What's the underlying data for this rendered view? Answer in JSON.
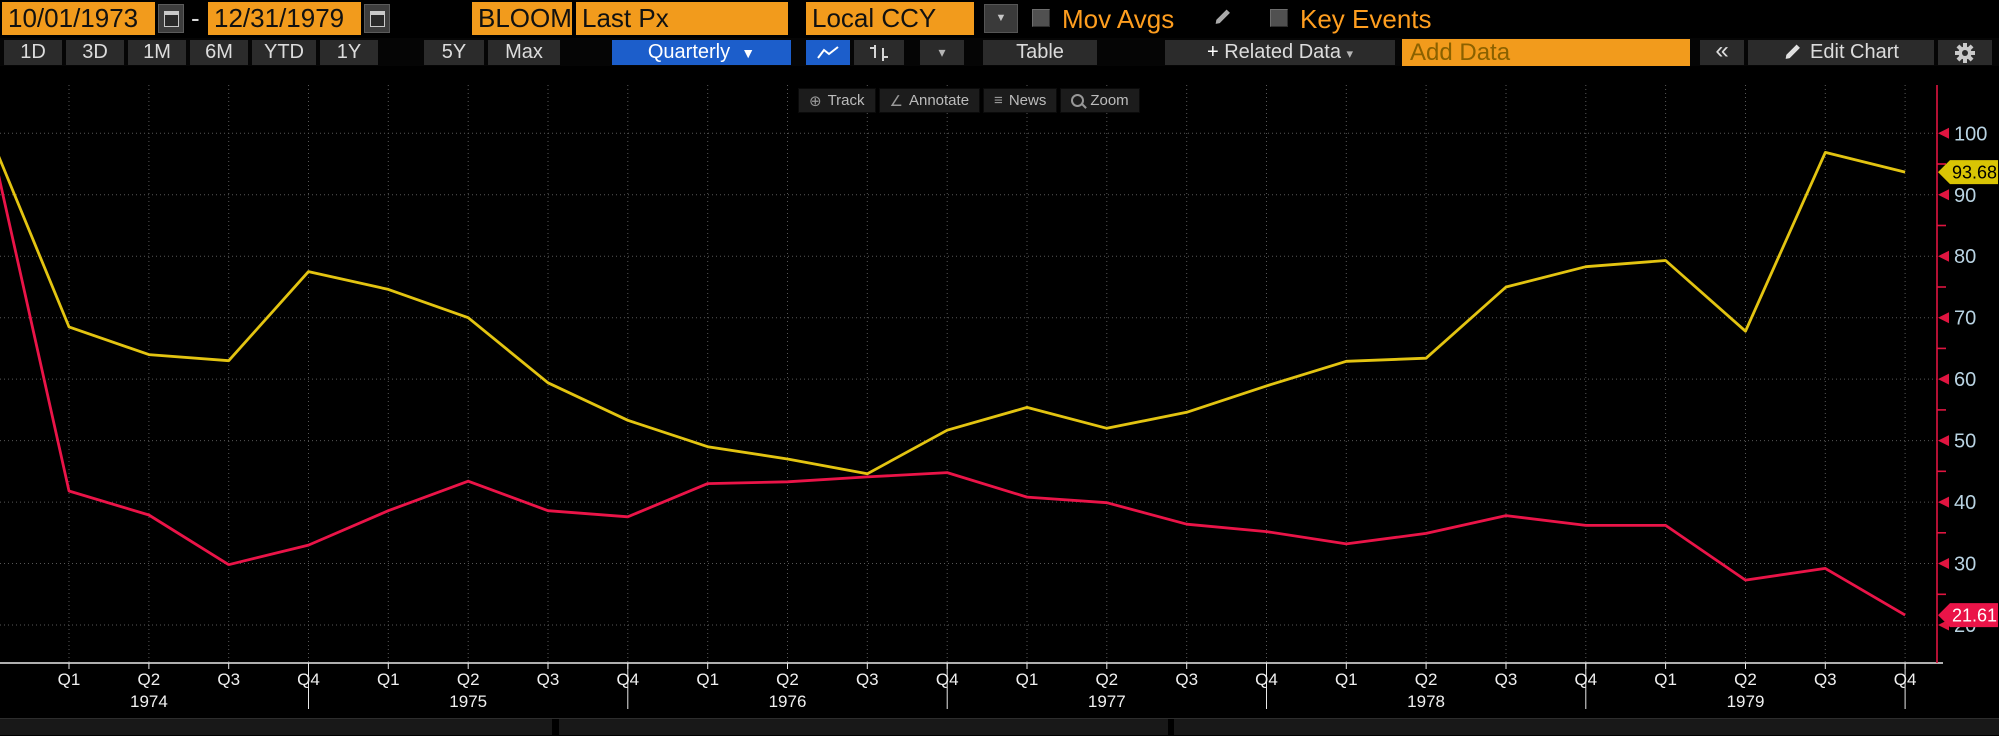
{
  "toolbar_top": {
    "date_from": "10/01/1973",
    "dash": "-",
    "date_to": "12/31/1979",
    "ticker": "BLOOM",
    "price_field": "Last Px",
    "currency_field": "Local CCY",
    "currency_arrow": "▼",
    "mov_avgs": "Mov Avgs",
    "key_events": "Key Events"
  },
  "toolbar_main": {
    "ranges": [
      "1D",
      "3D",
      "1M",
      "6M",
      "YTD",
      "1Y",
      "5Y",
      "Max"
    ],
    "period": "Quarterly",
    "period_arrow": "▼",
    "chart_type_arrow": "▾",
    "table": "Table",
    "related_plus": "+",
    "related": "Related Data",
    "related_arrow": "▾",
    "add_data_placeholder": "Add Data",
    "collapse": "«",
    "edit_chart": "Edit Chart"
  },
  "chart_tools": {
    "track": "Track",
    "annotate": "Annotate",
    "news": "News",
    "zoom": "Zoom"
  },
  "chart_data": {
    "type": "line",
    "period": "Quarterly",
    "x_range": "Q4 1973 - Q4 1979",
    "x_quarters": [
      "Q4",
      "Q1",
      "Q2",
      "Q3",
      "Q4",
      "Q1",
      "Q2",
      "Q3",
      "Q4",
      "Q1",
      "Q2",
      "Q3",
      "Q4",
      "Q1",
      "Q2",
      "Q3",
      "Q4",
      "Q1",
      "Q2",
      "Q3",
      "Q4",
      "Q1",
      "Q2",
      "Q3",
      "Q4"
    ],
    "x_years": [
      {
        "text": "1974",
        "index": 2
      },
      {
        "text": "1975",
        "index": 6
      },
      {
        "text": "1976",
        "index": 10
      },
      {
        "text": "1977",
        "index": 14
      },
      {
        "text": "1978",
        "index": 18
      },
      {
        "text": "1979",
        "index": 22
      }
    ],
    "year_end_tick_indices": [
      4,
      8,
      12,
      16,
      20,
      24
    ],
    "series": [
      {
        "name": "series-yellow",
        "color": "#e3c411",
        "badge_bg": "#d9c404",
        "badge_text_color": "#000000",
        "last_value_label": "93.68",
        "values": [
          100,
          68.5,
          64,
          63,
          77.5,
          74.6,
          70,
          59.4,
          53.3,
          49,
          47,
          44.6,
          51.7,
          55.4,
          52,
          54.6,
          58.9,
          62.9,
          63.4,
          75,
          78.3,
          79.3,
          67.8,
          96.9,
          93.68
        ]
      },
      {
        "name": "series-red",
        "color": "#ea1448",
        "badge_bg": "#ea1448",
        "badge_text_color": "#ffffff",
        "last_value_label": "21.61",
        "values": [
          100,
          41.8,
          37.9,
          29.8,
          33,
          38.6,
          43.4,
          38.6,
          37.6,
          43,
          43.3,
          44.1,
          44.8,
          40.8,
          39.9,
          36.4,
          35.2,
          33.2,
          34.9,
          37.8,
          36.2,
          36.2,
          27.3,
          29.2,
          21.61
        ]
      }
    ],
    "y_axis": {
      "side": "right",
      "color": "#e01540",
      "label_color": "#b9d3e2",
      "major_ticks": [
        20,
        30,
        40,
        50,
        60,
        70,
        80,
        90,
        100
      ],
      "minor_ticks": [
        25,
        35,
        45,
        55,
        65,
        75,
        85,
        95
      ],
      "range_shown": [
        20,
        100
      ]
    },
    "grid": {
      "color": "#575757",
      "style": "dotted"
    }
  }
}
